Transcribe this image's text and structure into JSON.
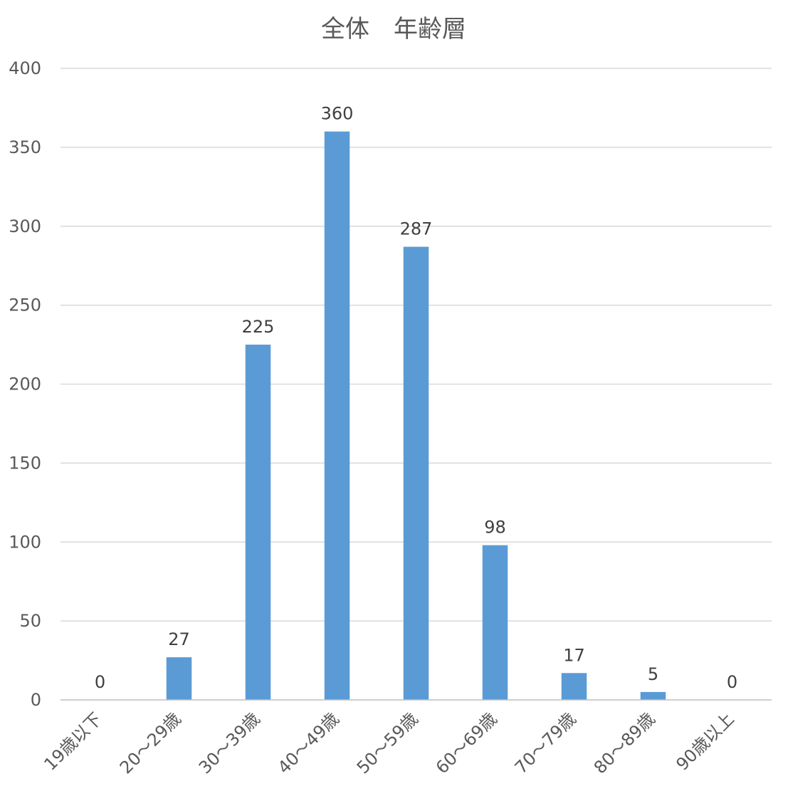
{
  "chart_data": {
    "type": "bar",
    "title": "全体　年齢層",
    "xlabel": "",
    "ylabel": "",
    "categories": [
      "19歳以下",
      "20～29歳",
      "30～39歳",
      "40～49歳",
      "50～59歳",
      "60～69歳",
      "70～79歳",
      "80～89歳",
      "90歳以上"
    ],
    "values": [
      0,
      27,
      225,
      360,
      287,
      98,
      17,
      5,
      0
    ],
    "ylim": [
      0,
      400
    ],
    "yticks": [
      0,
      50,
      100,
      150,
      200,
      250,
      300,
      350,
      400
    ],
    "grid": true,
    "legend": "none",
    "data_labels": true,
    "bar_color": "#5b9bd5"
  }
}
